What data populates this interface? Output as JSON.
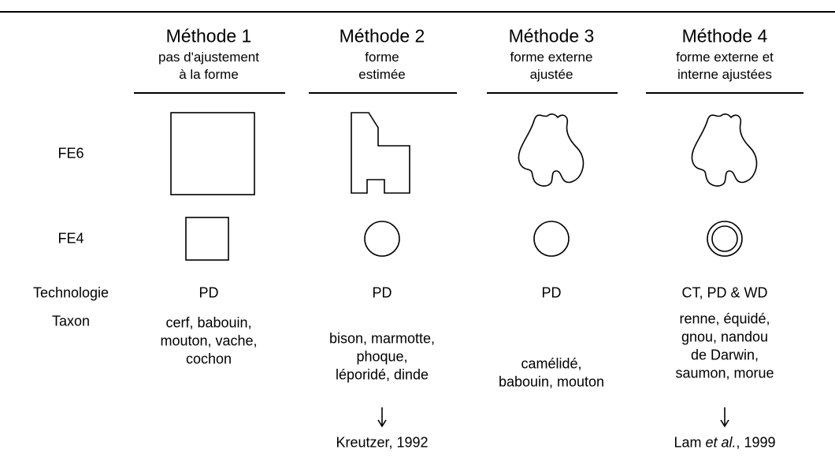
{
  "header": {
    "columns": [
      {
        "title": "Méthode 1",
        "subtitle": [
          "pas d'ajustement",
          "à la forme"
        ]
      },
      {
        "title": "Méthode 2",
        "subtitle": [
          "forme",
          "estimée"
        ]
      },
      {
        "title": "Méthode 3",
        "subtitle": [
          "forme externe",
          "ajustée"
        ]
      },
      {
        "title": "Méthode 4",
        "subtitle": [
          "forme externe et",
          "interne ajustées"
        ]
      }
    ]
  },
  "rows": {
    "fe6": "FE6",
    "fe4": "FE4",
    "technology": "Technologie",
    "taxon": "Taxon"
  },
  "technology": [
    "PD",
    "PD",
    "PD",
    "CT, PD & WD"
  ],
  "taxon": [
    [
      "cerf, babouin,",
      "mouton, vache,",
      "cochon"
    ],
    [
      "bison, marmotte,",
      "phoque,",
      "léporidé, dinde"
    ],
    [
      "camélidé,",
      "babouin, mouton"
    ],
    [
      "renne, équidé,",
      "gnou, nandou",
      "de Darwin,",
      "saumon, morue"
    ]
  ],
  "references": {
    "col2": "Kreutzer, 1992",
    "col4": {
      "author": "Lam",
      "etal": "et al.",
      "year": ", 1999"
    }
  }
}
